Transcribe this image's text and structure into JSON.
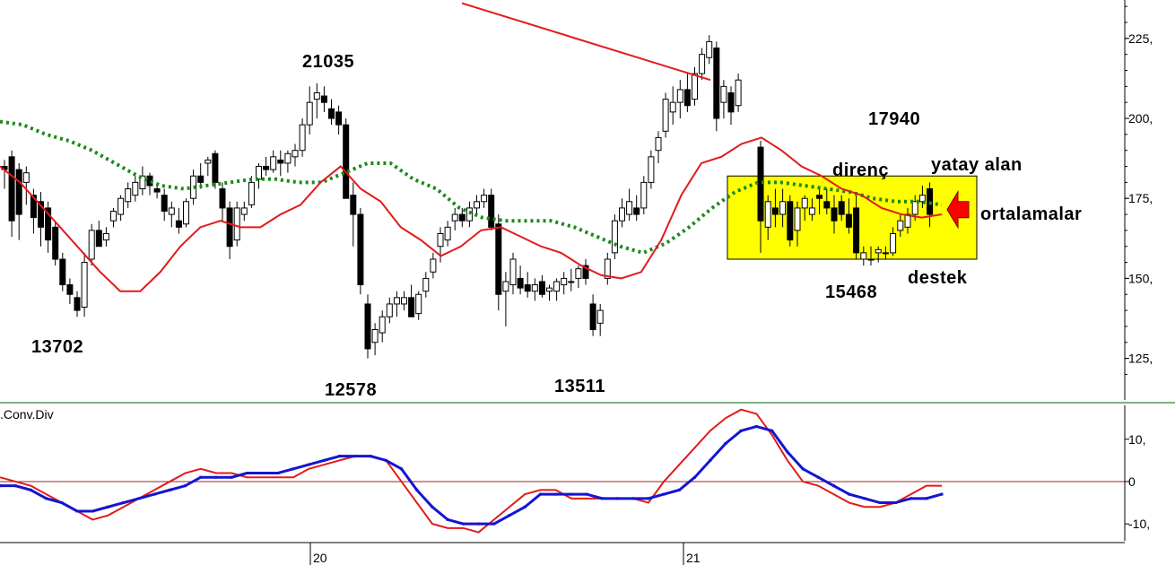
{
  "chart_data": {
    "type": "candlestick",
    "price_panel": {
      "y_ticks": [
        "225,",
        "200,",
        "175,",
        "150,",
        "125,"
      ],
      "y_tick_values": [
        225,
        200,
        175,
        150,
        125
      ],
      "ylim": [
        112,
        237
      ],
      "candles": [
        [
          185,
          187,
          178,
          184
        ],
        [
          188,
          190,
          163,
          168
        ],
        [
          184,
          186,
          162,
          170
        ],
        [
          180,
          185,
          173,
          183
        ],
        [
          176,
          178,
          164,
          169
        ],
        [
          174,
          177,
          160,
          166
        ],
        [
          172,
          174,
          158,
          162
        ],
        [
          166,
          168,
          154,
          156
        ],
        [
          156,
          158,
          146,
          148
        ],
        [
          148,
          150,
          142,
          145
        ],
        [
          144,
          146,
          138,
          140
        ],
        [
          141,
          158,
          138,
          155
        ],
        [
          156,
          167,
          154,
          165
        ],
        [
          165,
          168,
          160,
          160
        ],
        [
          162,
          166,
          160,
          164
        ],
        [
          168,
          172,
          166,
          171
        ],
        [
          170,
          176,
          168,
          175
        ],
        [
          174,
          180,
          172,
          178
        ],
        [
          176,
          182,
          174,
          180
        ],
        [
          178,
          185,
          176,
          182
        ],
        [
          182,
          183,
          176,
          179
        ],
        [
          178,
          180,
          175,
          177
        ],
        [
          176,
          178,
          168,
          171
        ],
        [
          170,
          174,
          166,
          172
        ],
        [
          168,
          172,
          164,
          166
        ],
        [
          167,
          175,
          166,
          174
        ],
        [
          175,
          184,
          173,
          182
        ],
        [
          182,
          186,
          178,
          180
        ],
        [
          186,
          188,
          182,
          187
        ],
        [
          189,
          190,
          178,
          180
        ],
        [
          178,
          180,
          168,
          172
        ],
        [
          172,
          174,
          156,
          160
        ],
        [
          162,
          174,
          160,
          172
        ],
        [
          170,
          174,
          168,
          172
        ],
        [
          173,
          182,
          172,
          180
        ],
        [
          181,
          186,
          178,
          185
        ],
        [
          185,
          188,
          182,
          184
        ],
        [
          184,
          190,
          183,
          188
        ],
        [
          187,
          190,
          182,
          186
        ],
        [
          186,
          190,
          183,
          189
        ],
        [
          188,
          192,
          185,
          190
        ],
        [
          190,
          200,
          188,
          198
        ],
        [
          198,
          210,
          195,
          205
        ],
        [
          206,
          211,
          200,
          208
        ],
        [
          207,
          210,
          202,
          205
        ],
        [
          203,
          206,
          198,
          200
        ],
        [
          202,
          204,
          195,
          198
        ],
        [
          198,
          200,
          175,
          175
        ],
        [
          176,
          180,
          160,
          170
        ],
        [
          170,
          172,
          145,
          148
        ],
        [
          142,
          145,
          125,
          128
        ],
        [
          130,
          136,
          126,
          134
        ],
        [
          133,
          140,
          130,
          138
        ],
        [
          138,
          144,
          136,
          142
        ],
        [
          142,
          146,
          138,
          144
        ],
        [
          142,
          146,
          140,
          144
        ],
        [
          144,
          148,
          138,
          138
        ],
        [
          139,
          146,
          137,
          145
        ],
        [
          146,
          152,
          144,
          150
        ],
        [
          152,
          158,
          150,
          156
        ],
        [
          160,
          166,
          155,
          164
        ],
        [
          162,
          168,
          160,
          166
        ],
        [
          168,
          172,
          165,
          170
        ],
        [
          170,
          172,
          166,
          168
        ],
        [
          168,
          174,
          166,
          172
        ],
        [
          172,
          176,
          170,
          174
        ],
        [
          174,
          178,
          172,
          176
        ],
        [
          176,
          178,
          165,
          166
        ],
        [
          167,
          170,
          140,
          145
        ],
        [
          146,
          152,
          135,
          149
        ],
        [
          148,
          158,
          145,
          156
        ],
        [
          150,
          154,
          145,
          147
        ],
        [
          148,
          152,
          144,
          146
        ],
        [
          146,
          150,
          143,
          148
        ],
        [
          149,
          151,
          144,
          145
        ],
        [
          146,
          148,
          143,
          147
        ],
        [
          146,
          150,
          143,
          149
        ],
        [
          148,
          152,
          145,
          150
        ],
        [
          149,
          153,
          146,
          149
        ],
        [
          150,
          154,
          147,
          153
        ],
        [
          154,
          156,
          148,
          150
        ],
        [
          142,
          145,
          132,
          134
        ],
        [
          136,
          142,
          132,
          140
        ],
        [
          150,
          158,
          148,
          156
        ],
        [
          158,
          170,
          156,
          168
        ],
        [
          168,
          175,
          166,
          172
        ],
        [
          170,
          178,
          168,
          174
        ],
        [
          172,
          176,
          168,
          170
        ],
        [
          172,
          182,
          170,
          180
        ],
        [
          180,
          190,
          178,
          188
        ],
        [
          190,
          196,
          186,
          194
        ],
        [
          196,
          208,
          194,
          206
        ],
        [
          202,
          210,
          198,
          205
        ],
        [
          205,
          212,
          200,
          209
        ],
        [
          209,
          214,
          202,
          204
        ],
        [
          206,
          216,
          204,
          214
        ],
        [
          214,
          222,
          212,
          220
        ],
        [
          219,
          226,
          217,
          224
        ],
        [
          222,
          224,
          196,
          200
        ],
        [
          205,
          212,
          200,
          210
        ],
        [
          208,
          210,
          198,
          202
        ],
        [
          204,
          214,
          202,
          212
        ]
      ],
      "candles_after_gap": [
        [
          191,
          193,
          158,
          168
        ],
        [
          166,
          176,
          162,
          174
        ],
        [
          172,
          178,
          166,
          170
        ],
        [
          170,
          178,
          166,
          174
        ],
        [
          174,
          176,
          160,
          162
        ],
        [
          165,
          174,
          160,
          172
        ],
        [
          172,
          176,
          168,
          175
        ],
        [
          170,
          175,
          168,
          172
        ],
        [
          176,
          178,
          170,
          175
        ],
        [
          174,
          178,
          170,
          172
        ],
        [
          172,
          176,
          164,
          168
        ],
        [
          174,
          176,
          168,
          170
        ],
        [
          170,
          175,
          164,
          166
        ],
        [
          172,
          176,
          156,
          158
        ],
        [
          156,
          160,
          154,
          158
        ],
        [
          156,
          160,
          154,
          156
        ],
        [
          158,
          160,
          155,
          159
        ],
        [
          158,
          160,
          156,
          158
        ],
        [
          158,
          166,
          157,
          164
        ],
        [
          165,
          170,
          163,
          168
        ],
        [
          166,
          172,
          164,
          170
        ],
        [
          170,
          176,
          168,
          174
        ],
        [
          174,
          179,
          172,
          176
        ],
        [
          178,
          180,
          166,
          170
        ]
      ],
      "avg_dotted": [
        199,
        198,
        195,
        193,
        190,
        186,
        182,
        179,
        178,
        179,
        180,
        181,
        181,
        180,
        180,
        183,
        186,
        186,
        181,
        178,
        172,
        169,
        168,
        168,
        168,
        166,
        163,
        160,
        158,
        161,
        166,
        172,
        177,
        180,
        180,
        179,
        178,
        177,
        175,
        174,
        174,
        173
      ],
      "avg_red": [
        185,
        180,
        173,
        166,
        159,
        152,
        146,
        146,
        152,
        160,
        166,
        168,
        166,
        166,
        170,
        173,
        180,
        185,
        178,
        174,
        166,
        162,
        157,
        160,
        165,
        166,
        163,
        160,
        158,
        154,
        151,
        150,
        152,
        162,
        176,
        186,
        188,
        192,
        194,
        190,
        185,
        182,
        178,
        176,
        172,
        170,
        169,
        170
      ],
      "trend_line": [
        [
          0,
          236
        ],
        [
          1,
          212
        ]
      ]
    },
    "price_labels": [
      "21035",
      "13702",
      "12578",
      "13511",
      "17940",
      "15468"
    ],
    "annotations": [
      "direnç",
      "yatay alan",
      "ortalamalar",
      "destek"
    ],
    "macd_panel": {
      "title": "Mov.Avg.Conv.Div",
      "visible_title": ".Conv.Div",
      "y_ticks": [
        "10,",
        "0",
        "-10,"
      ],
      "y_tick_values": [
        10,
        0,
        -10
      ],
      "ylim": [
        -14,
        18
      ],
      "macd": [
        1,
        0,
        -1,
        -3,
        -5,
        -7,
        -9,
        -8,
        -6,
        -4,
        -2,
        0,
        2,
        3,
        2,
        2,
        1,
        1,
        1,
        1,
        3,
        4,
        5,
        6,
        6,
        5,
        0,
        -5,
        -10,
        -11,
        -11,
        -12,
        -9,
        -6,
        -3,
        -2,
        -2,
        -4,
        -4,
        -4,
        -4,
        -4,
        -5,
        0,
        4,
        8,
        12,
        15,
        17,
        16,
        11,
        5,
        0,
        -1,
        -3,
        -5,
        -6,
        -6,
        -5,
        -3,
        -1,
        -1
      ],
      "signal": [
        -1,
        -1,
        -2,
        -4,
        -5,
        -7,
        -7,
        -6,
        -5,
        -4,
        -3,
        -2,
        -1,
        1,
        1,
        1,
        2,
        2,
        2,
        3,
        4,
        5,
        6,
        6,
        6,
        5,
        3,
        -2,
        -6,
        -9,
        -10,
        -10,
        -10,
        -8,
        -6,
        -3,
        -3,
        -3,
        -3,
        -4,
        -4,
        -4,
        -4,
        -3,
        -2,
        1,
        5,
        9,
        12,
        13,
        12,
        7,
        3,
        1,
        -1,
        -3,
        -4,
        -5,
        -5,
        -4,
        -4,
        -3
      ]
    },
    "x_ticks": [
      "20",
      "21"
    ],
    "colors": {
      "up_candle": "#ffffff",
      "down_candle": "#000000",
      "red_average": "#e31a1a",
      "green_average": "#1a8a1a",
      "signal": "#1515d0",
      "zone_fill": "#ffff00",
      "arrow": "#ff0000",
      "zero_line": "#a02020",
      "divider": "#80b080"
    }
  },
  "annotations_text": {
    "resistance": "direnç",
    "horizontal_zone": "yatay alan",
    "averages": "ortalamalar",
    "support": "destek"
  },
  "labels": {
    "high_21035": "21035",
    "low_13702": "13702",
    "low_12578": "12578",
    "low_13511": "13511",
    "high_17940": "17940",
    "low_15468": "15468"
  },
  "macd_title": ".Conv.Div"
}
